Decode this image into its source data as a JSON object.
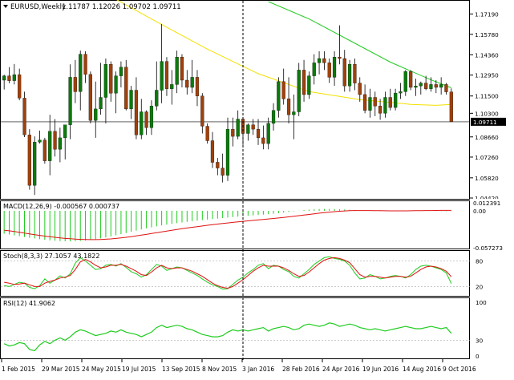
{
  "header": {
    "symbol_label": "EURUSD,Weekly",
    "ohlc_label": "1.11787  1.12026  1.09702  1.09711"
  },
  "colors": {
    "bull_candle": "#0b7a0b",
    "bear_candle": "#a0400b",
    "wick": "#000000",
    "ma_fast": "#f2e100",
    "ma_slow": "#22cc22",
    "macd_hist": "#1fcc1f",
    "macd_signal": "#e01010",
    "stoch_main": "#1fcc1f",
    "stoch_signal": "#e01010",
    "rsi_line": "#1fcc1f",
    "price_tag_bg": "#000000",
    "price_tag_text": "#ffffff",
    "axis_text": "#000000",
    "vertical_marker": "#000000"
  },
  "chart_data": [
    {
      "type": "candlestick",
      "panel": "price",
      "symbol": "EURUSD",
      "timeframe": "Weekly",
      "last_ohlc": {
        "open": 1.11787,
        "high": 1.12026,
        "low": 1.09702,
        "close": 1.09711
      },
      "current_price": 1.09711,
      "current_price_label": "1.09711",
      "y_ticks": [
        1.1719,
        1.1578,
        1.1436,
        1.1295,
        1.115,
        1.103,
        1.0866,
        1.0726,
        1.0582,
        1.0442
      ],
      "y_tick_labels": [
        "1.17190",
        "1.15780",
        "1.14360",
        "1.12950",
        "1.11500",
        "1.10300",
        "1.08660",
        "1.07260",
        "1.05820",
        "1.04420"
      ],
      "ylim": [
        1.0442,
        1.1805
      ],
      "moving_averages": [
        {
          "color": "#f2e100",
          "points": [
            [
              0,
              1.2325
            ],
            [
              10,
              1.2088
            ],
            [
              20,
              1.186
            ],
            [
              30,
              1.1665
            ],
            [
              40,
              1.1475
            ],
            [
              50,
              1.1305
            ],
            [
              60,
              1.118
            ],
            [
              70,
              1.1125
            ],
            [
              80,
              1.1092
            ],
            [
              85,
              1.1085
            ],
            [
              88,
              1.1092
            ]
          ]
        },
        {
          "color": "#22cc22",
          "points": [
            [
              52,
              1.1805
            ],
            [
              60,
              1.1685
            ],
            [
              68,
              1.1535
            ],
            [
              76,
              1.1385
            ],
            [
              84,
              1.1262
            ],
            [
              88,
              1.1207
            ]
          ]
        }
      ],
      "candles": [
        [
          1.126,
          1.1298,
          1.1195,
          1.129
        ],
        [
          1.129,
          1.135,
          1.1238,
          1.1256
        ],
        [
          1.1256,
          1.1372,
          1.123,
          1.1298
        ],
        [
          1.1298,
          1.134,
          1.112,
          1.1135
        ],
        [
          1.1135,
          1.118,
          1.0865,
          1.088
        ],
        [
          1.088,
          1.092,
          1.05,
          1.053
        ],
        [
          1.053,
          1.087,
          1.0463,
          1.083
        ],
        [
          1.083,
          1.091,
          1.082,
          1.0845
        ],
        [
          1.0845,
          1.086,
          1.068,
          1.07
        ],
        [
          1.07,
          1.102,
          1.06,
          1.0905
        ],
        [
          1.0905,
          1.099,
          1.073,
          1.078
        ],
        [
          1.078,
          1.093,
          1.069,
          1.086
        ],
        [
          1.086,
          1.094,
          1.071,
          1.095
        ],
        [
          1.095,
          1.137,
          1.085,
          1.128
        ],
        [
          1.128,
          1.14,
          1.11,
          1.118
        ],
        [
          1.118,
          1.1465,
          1.105,
          1.144
        ],
        [
          1.144,
          1.146,
          1.124,
          1.13
        ],
        [
          1.13,
          1.132,
          1.096,
          1.098
        ],
        [
          1.098,
          1.125,
          1.086,
          1.106
        ],
        [
          1.106,
          1.138,
          1.102,
          1.114
        ],
        [
          1.114,
          1.141,
          1.096,
          1.137
        ],
        [
          1.137,
          1.139,
          1.111,
          1.117
        ],
        [
          1.117,
          1.132,
          1.103,
          1.129
        ],
        [
          1.129,
          1.139,
          1.121,
          1.135
        ],
        [
          1.135,
          1.14,
          1.105,
          1.106
        ],
        [
          1.106,
          1.122,
          1.099,
          1.119
        ],
        [
          1.119,
          1.128,
          1.085,
          1.088
        ],
        [
          1.088,
          1.113,
          1.085,
          1.104
        ],
        [
          1.104,
          1.105,
          1.088,
          1.093
        ],
        [
          1.093,
          1.112,
          1.088,
          1.108
        ],
        [
          1.108,
          1.139,
          1.105,
          1.119
        ],
        [
          1.119,
          1.165,
          1.11,
          1.139
        ],
        [
          1.139,
          1.142,
          1.115,
          1.12
        ],
        [
          1.12,
          1.133,
          1.109,
          1.123
        ],
        [
          1.123,
          1.1465,
          1.117,
          1.142
        ],
        [
          1.142,
          1.144,
          1.121,
          1.126
        ],
        [
          1.126,
          1.133,
          1.116,
          1.121
        ],
        [
          1.121,
          1.14,
          1.117,
          1.128
        ],
        [
          1.128,
          1.133,
          1.108,
          1.115
        ],
        [
          1.115,
          1.117,
          1.089,
          1.094
        ],
        [
          1.094,
          1.096,
          1.082,
          1.084
        ],
        [
          1.084,
          1.09,
          1.065,
          1.069
        ],
        [
          1.069,
          1.072,
          1.06,
          1.065
        ],
        [
          1.065,
          1.075,
          1.055,
          1.06
        ],
        [
          1.06,
          1.1,
          1.056,
          1.092
        ],
        [
          1.092,
          1.1,
          1.08,
          1.087
        ],
        [
          1.087,
          1.105,
          1.085,
          1.099
        ],
        [
          1.099,
          1.0995,
          1.081,
          1.089
        ],
        [
          1.089,
          1.096,
          1.084,
          1.095
        ],
        [
          1.095,
          1.099,
          1.088,
          1.092
        ],
        [
          1.092,
          1.099,
          1.081,
          1.086
        ],
        [
          1.086,
          1.0945,
          1.078,
          1.082
        ],
        [
          1.082,
          1.1,
          1.078,
          1.096
        ],
        [
          1.096,
          1.11,
          1.091,
          1.105
        ],
        [
          1.105,
          1.128,
          1.1,
          1.125
        ],
        [
          1.125,
          1.134,
          1.109,
          1.113
        ],
        [
          1.113,
          1.128,
          1.096,
          1.102
        ],
        [
          1.102,
          1.116,
          1.085,
          1.104
        ],
        [
          1.104,
          1.138,
          1.101,
          1.133
        ],
        [
          1.133,
          1.14,
          1.111,
          1.116
        ],
        [
          1.116,
          1.132,
          1.113,
          1.129
        ],
        [
          1.129,
          1.144,
          1.123,
          1.138
        ],
        [
          1.138,
          1.146,
          1.13,
          1.141
        ],
        [
          1.141,
          1.146,
          1.133,
          1.138
        ],
        [
          1.138,
          1.141,
          1.124,
          1.128
        ],
        [
          1.128,
          1.146,
          1.122,
          1.142
        ],
        [
          1.142,
          1.164,
          1.137,
          1.141
        ],
        [
          1.141,
          1.147,
          1.118,
          1.122
        ],
        [
          1.122,
          1.14,
          1.118,
          1.137
        ],
        [
          1.137,
          1.141,
          1.119,
          1.124
        ],
        [
          1.124,
          1.128,
          1.111,
          1.116
        ],
        [
          1.116,
          1.123,
          1.103,
          1.105
        ],
        [
          1.105,
          1.12,
          1.1,
          1.114
        ],
        [
          1.114,
          1.118,
          1.101,
          1.108
        ],
        [
          1.108,
          1.113,
          1.0985,
          1.103
        ],
        [
          1.103,
          1.118,
          1.1,
          1.114
        ],
        [
          1.114,
          1.12,
          1.105,
          1.107
        ],
        [
          1.107,
          1.12,
          1.105,
          1.117
        ],
        [
          1.117,
          1.124,
          1.113,
          1.118
        ],
        [
          1.118,
          1.133,
          1.115,
          1.132
        ],
        [
          1.132,
          1.133,
          1.119,
          1.121
        ],
        [
          1.121,
          1.127,
          1.115,
          1.122
        ],
        [
          1.122,
          1.125,
          1.116,
          1.124
        ],
        [
          1.124,
          1.129,
          1.119,
          1.12
        ],
        [
          1.12,
          1.128,
          1.118,
          1.123
        ],
        [
          1.123,
          1.126,
          1.117,
          1.121
        ],
        [
          1.121,
          1.128,
          1.116,
          1.123
        ],
        [
          1.123,
          1.124,
          1.116,
          1.1179
        ],
        [
          1.11787,
          1.12026,
          1.09702,
          1.09711
        ]
      ]
    },
    {
      "type": "bar",
      "panel": "macd",
      "title": "MACD(12,26,9) -0.000567 0.000737",
      "y_tick_labels": [
        "0.012391",
        "0.00",
        "-0.057273"
      ],
      "ylim": [
        -0.057273,
        0.012391
      ],
      "values": [
        -0.0355,
        -0.0368,
        -0.0381,
        -0.0394,
        -0.0406,
        -0.0418,
        -0.0429,
        -0.044,
        -0.045,
        -0.0458,
        -0.0465,
        -0.047,
        -0.0473,
        -0.0474,
        -0.0472,
        -0.0468,
        -0.0461,
        -0.0452,
        -0.0441,
        -0.0428,
        -0.0413,
        -0.0397,
        -0.038,
        -0.0362,
        -0.0344,
        -0.0325,
        -0.0307,
        -0.0289,
        -0.0272,
        -0.0256,
        -0.0241,
        -0.0227,
        -0.0214,
        -0.0202,
        -0.0191,
        -0.0181,
        -0.0171,
        -0.0162,
        -0.0153,
        -0.0144,
        -0.0136,
        -0.0128,
        -0.012,
        -0.0112,
        -0.0104,
        -0.0097,
        -0.009,
        -0.0083,
        -0.0077,
        -0.0071,
        -0.0065,
        -0.0059,
        -0.0052,
        -0.0045,
        -0.0037,
        -0.0028,
        -0.0018,
        -0.0008,
        0.0002,
        0.0011,
        0.0018,
        0.0024,
        0.0028,
        0.003,
        0.003,
        0.0028,
        0.0025,
        0.0021,
        0.0016,
        0.0011,
        0.0006,
        0.0002,
        -0.0001,
        -0.0003,
        -0.0004,
        -0.0004,
        -0.0003,
        -0.0002,
        -0.0001,
        0.0,
        0.0001,
        0.0002,
        0.0002,
        0.0001,
        0.0,
        -0.0002,
        -0.0004,
        -0.0006,
        -0.000567
      ],
      "signal": [
        -0.03,
        -0.031,
        -0.0322,
        -0.0334,
        -0.0346,
        -0.0358,
        -0.037,
        -0.0381,
        -0.0392,
        -0.0402,
        -0.0411,
        -0.042,
        -0.0428,
        -0.0434,
        -0.0439,
        -0.0443,
        -0.0446,
        -0.0447,
        -0.0447,
        -0.0445,
        -0.0441,
        -0.0436,
        -0.0429,
        -0.042,
        -0.0411,
        -0.0401,
        -0.039,
        -0.0378,
        -0.0366,
        -0.0353,
        -0.034,
        -0.0327,
        -0.0314,
        -0.0302,
        -0.029,
        -0.0278,
        -0.0267,
        -0.0256,
        -0.0245,
        -0.0235,
        -0.0225,
        -0.0216,
        -0.0206,
        -0.0197,
        -0.0188,
        -0.018,
        -0.0172,
        -0.0164,
        -0.0156,
        -0.0148,
        -0.0141,
        -0.0134,
        -0.0126,
        -0.0119,
        -0.0111,
        -0.0103,
        -0.0094,
        -0.0085,
        -0.0075,
        -0.0066,
        -0.0056,
        -0.0046,
        -0.0037,
        -0.0028,
        -0.002,
        -0.0013,
        -0.0007,
        -0.0002,
        0.0002,
        0.0004,
        0.0005,
        0.0005,
        0.0004,
        0.0003,
        0.0002,
        0.0001,
        0.0,
        0.0,
        0.0,
        0.0,
        0.0001,
        0.0002,
        0.0003,
        0.0004,
        0.0005,
        0.0006,
        0.0007,
        0.0007,
        0.000737
      ]
    },
    {
      "type": "line",
      "panel": "stochastic",
      "title": "Stoch(8,3,3) 27.1057 43.1822",
      "y_tick_labels": [
        "80",
        "20"
      ],
      "ylim": [
        0,
        100
      ],
      "series": [
        {
          "color": "#1fcc1f",
          "values": [
            22,
            20,
            25,
            30,
            28,
            18,
            15,
            22,
            38,
            28,
            35,
            45,
            40,
            50,
            75,
            88,
            80,
            70,
            60,
            62,
            70,
            72,
            68,
            74,
            65,
            55,
            50,
            42,
            48,
            60,
            72,
            68,
            58,
            62,
            66,
            64,
            58,
            52,
            46,
            38,
            30,
            24,
            20,
            14,
            15,
            25,
            35,
            42,
            52,
            60,
            70,
            74,
            62,
            70,
            68,
            60,
            55,
            44,
            40,
            50,
            60,
            72,
            80,
            88,
            90,
            86,
            84,
            80,
            70,
            52,
            38,
            40,
            48,
            44,
            38,
            40,
            44,
            46,
            44,
            40,
            48,
            60,
            68,
            70,
            68,
            64,
            60,
            52,
            27.1057
          ]
        },
        {
          "color": "#e01010",
          "values": [
            30,
            28,
            25,
            26,
            28,
            24,
            20,
            20,
            28,
            32,
            35,
            40,
            42,
            46,
            60,
            78,
            84,
            78,
            70,
            64,
            66,
            70,
            70,
            72,
            68,
            62,
            56,
            48,
            46,
            54,
            64,
            70,
            64,
            62,
            64,
            64,
            60,
            56,
            50,
            44,
            36,
            28,
            22,
            18,
            16,
            20,
            28,
            36,
            46,
            56,
            64,
            70,
            68,
            68,
            68,
            64,
            58,
            50,
            44,
            46,
            54,
            64,
            74,
            82,
            86,
            88,
            86,
            82,
            76,
            62,
            48,
            42,
            44,
            44,
            42,
            40,
            42,
            44,
            44,
            42,
            44,
            52,
            60,
            66,
            68,
            66,
            62,
            56,
            43.1822
          ]
        }
      ]
    },
    {
      "type": "line",
      "panel": "rsi",
      "title": "RSI(12) 41.9062",
      "y_tick_labels": [
        "100",
        "30",
        "0"
      ],
      "ylim": [
        0,
        100
      ],
      "series": [
        {
          "color": "#1fcc1f",
          "values": [
            24,
            20,
            22,
            26,
            24,
            14,
            12,
            22,
            28,
            24,
            30,
            34,
            30,
            36,
            44,
            48,
            46,
            42,
            38,
            40,
            42,
            46,
            44,
            48,
            44,
            42,
            40,
            36,
            40,
            44,
            52,
            56,
            52,
            54,
            56,
            54,
            50,
            48,
            44,
            40,
            38,
            36,
            36,
            38,
            44,
            48,
            46,
            48,
            46,
            48,
            50,
            52,
            46,
            50,
            52,
            54,
            52,
            48,
            50,
            56,
            58,
            56,
            54,
            56,
            60,
            58,
            54,
            56,
            58,
            56,
            52,
            50,
            48,
            50,
            48,
            46,
            48,
            50,
            52,
            54,
            52,
            50,
            50,
            52,
            54,
            52,
            50,
            52,
            41.9062
          ]
        }
      ]
    }
  ],
  "x_axis": {
    "labels": [
      "1 Feb 2015",
      "29 Mar 2015",
      "24 May 2015",
      "19 Jul 2015",
      "13 Sep 2015",
      "8 Nov 2015",
      "3 Jan 2016",
      "28 Feb 2016",
      "24 Apr 2016",
      "19 Jun 2016",
      "14 Aug 2016",
      "9 Oct 2016"
    ]
  }
}
